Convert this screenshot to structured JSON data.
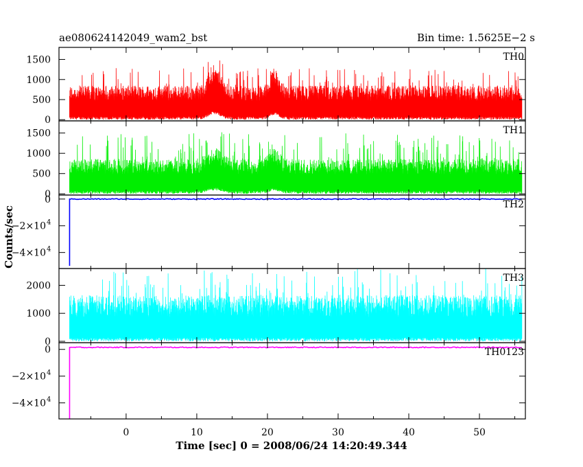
{
  "chart_data": {
    "type": "line",
    "title_left": "ae080624142049_wam2_bst",
    "title_right": "Bin time: 1.5625E−2 s",
    "xlabel": "Time [sec] 0 = 2008/06/24 14:20:49.344",
    "ylabel": "Counts/sec",
    "xlim": [
      -9.5,
      56.5
    ],
    "x_ticks": [
      0,
      10,
      20,
      30,
      40,
      50
    ],
    "data_x_range": [
      -8,
      56
    ],
    "grid": false,
    "panels": [
      {
        "label": "TH0",
        "color": "#ff0000",
        "ylim": [
          -30,
          1800
        ],
        "y_ticks": [
          0,
          500,
          1000,
          1500
        ],
        "y_tick_labels": [
          "0",
          "500",
          "1000",
          "1500"
        ],
        "noise": {
          "base": 300,
          "spread": 380,
          "peak": 1300
        },
        "features": [
          {
            "x": 12.5,
            "extra": 450,
            "width": 1.2
          },
          {
            "x": 21,
            "extra": 400,
            "width": 0.9
          }
        ]
      },
      {
        "label": "TH1",
        "color": "#00ee00",
        "ylim": [
          -30,
          1800
        ],
        "y_ticks": [
          0,
          500,
          1000,
          1500
        ],
        "y_tick_labels": [
          "0",
          "500",
          "1000",
          "1500"
        ],
        "noise": {
          "base": 310,
          "spread": 380,
          "peak": 1500
        },
        "features": [
          {
            "x": 12.5,
            "extra": 280,
            "width": 1.5
          },
          {
            "x": 21,
            "extra": 260,
            "width": 1.0
          }
        ]
      },
      {
        "label": "TH2",
        "color": "#0000ff",
        "ylim": [
          -52000,
          3000
        ],
        "y_ticks": [
          0,
          -20000,
          -40000
        ],
        "y_tick_labels": [
          "0",
          "−2×10",
          "−4×10"
        ],
        "y_tick_exponent": "4",
        "flat_value": 0,
        "initial_drop": -50000
      },
      {
        "label": "TH3",
        "color": "#00ffff",
        "ylim": [
          -50,
          2600
        ],
        "y_ticks": [
          0,
          1000,
          2000
        ],
        "y_tick_labels": [
          "0",
          "1000",
          "2000"
        ],
        "noise": {
          "base": 520,
          "spread": 780,
          "peak": 2600
        },
        "features": []
      },
      {
        "label": "TH0123",
        "color": "#ff00ff",
        "ylim": [
          -52000,
          5000
        ],
        "y_ticks": [
          0,
          -20000,
          -40000
        ],
        "y_tick_labels": [
          "0",
          "−2×10",
          "−4×10"
        ],
        "y_tick_exponent": "4",
        "flat_value": 1500,
        "initial_drop": -52000
      }
    ]
  }
}
